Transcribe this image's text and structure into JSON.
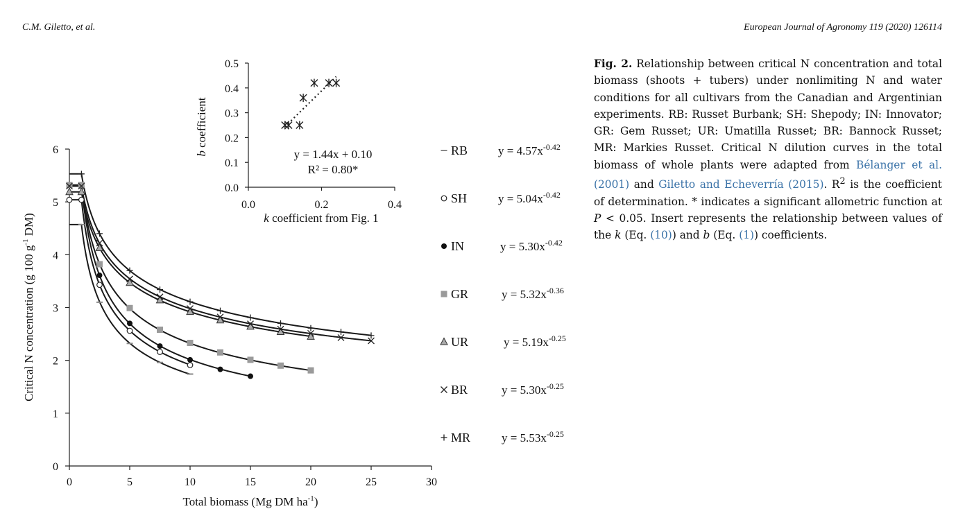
{
  "header": {
    "authors": "C.M. Giletto, et al.",
    "journal": "European Journal of Agronomy 119 (2020) 126114"
  },
  "caption": {
    "label": "Fig. 2.",
    "text1": " Relationship between critical N concentration and total biomass (shoots + tubers) under nonlimiting N and water conditions for all cultivars from the Canadian and Argentinian experiments. RB: Russet Burbank; SH: Shepody; IN: Innovator; GR: Gem Russet; UR: Umatilla Russet; BR: Bannock Russet; MR: Markies Russet. Critical N dilution curves in the total biomass of whole plants were adapted from ",
    "ref1": "Bélanger et al. (2001)",
    "text2": " and ",
    "ref2": "Giletto and Echeverría (2015)",
    "text3": ". R",
    "sup": "2",
    "text4": " is the coefficient of determination. * indicates a significant allometric function at ",
    "p_var": "P",
    "text5": " <  0.05. Insert represents the relationship between values of the ",
    "k_var": "k",
    "text6": " (Eq. ",
    "eq10": "(10)",
    "text7": ") and ",
    "b_var": "b",
    "text8": " (Eq. ",
    "eq1": "(1)",
    "text9": ") coefficients."
  },
  "chart_data": [
    {
      "type": "line",
      "title": "",
      "xlabel": "Total biomass (Mg DM ha",
      "xlabel_sup": "-1",
      "xlabel_end": ")",
      "ylabel": "Critical  N concentration  (g 100 g",
      "ylabel_sup": "-1",
      "ylabel_end": " DM)",
      "xlim": [
        0,
        30
      ],
      "ylim": [
        0,
        6
      ],
      "xticks": [
        "0",
        "5",
        "10",
        "15",
        "20",
        "25",
        "30"
      ],
      "yticks": [
        "0",
        "1",
        "2",
        "3",
        "4",
        "5",
        "6"
      ],
      "legend": "right",
      "series": [
        {
          "name": "RB",
          "marker": "dash",
          "a": 4.57,
          "b": 0.42,
          "xmax": 10,
          "plateau": 4.57,
          "equation": "y = 4.57x",
          "exponent": "-0.42",
          "x": [
            1,
            2.5,
            5,
            7.5,
            10
          ],
          "y": [
            4.57,
            3.1,
            2.32,
            1.96,
            1.74
          ]
        },
        {
          "name": "SH",
          "marker": "circle-open",
          "a": 5.04,
          "b": 0.42,
          "xmax": 10,
          "plateau": 5.04,
          "equation": "y = 5.04x",
          "exponent": "-0.42",
          "x": [
            0,
            1,
            2.5,
            5,
            7.5,
            10
          ],
          "y": [
            5.04,
            5.04,
            3.43,
            2.56,
            2.16,
            1.91
          ]
        },
        {
          "name": "IN",
          "marker": "circle-filled",
          "a": 5.3,
          "b": 0.42,
          "xmax": 15,
          "plateau": 5.3,
          "equation": "y = 5.30x",
          "exponent": "-0.42",
          "x": [
            1,
            2.5,
            5,
            7.5,
            10,
            12.5,
            15
          ],
          "y": [
            5.3,
            3.61,
            2.7,
            2.27,
            2.01,
            1.83,
            1.7
          ]
        },
        {
          "name": "GR",
          "marker": "square",
          "a": 5.32,
          "b": 0.36,
          "xmax": 20,
          "plateau": 5.32,
          "equation": "y = 5.32x",
          "exponent": "-0.36",
          "x": [
            0,
            1,
            2.5,
            5,
            7.5,
            10,
            12.5,
            15,
            17.5,
            20
          ],
          "y": [
            5.32,
            5.32,
            3.82,
            2.99,
            2.58,
            2.33,
            2.15,
            2.01,
            1.9,
            1.81
          ]
        },
        {
          "name": "UR",
          "marker": "triangle",
          "a": 5.19,
          "b": 0.25,
          "xmax": 20,
          "plateau": 5.19,
          "equation": "y = 5.19x",
          "exponent": "-0.25",
          "x": [
            0,
            1,
            2.5,
            5,
            7.5,
            10,
            12.5,
            15,
            17.5,
            20
          ],
          "y": [
            5.19,
            5.19,
            4.13,
            3.47,
            3.14,
            2.92,
            2.76,
            2.64,
            2.54,
            2.45
          ]
        },
        {
          "name": "BR",
          "marker": "x",
          "a": 5.3,
          "b": 0.25,
          "xmax": 25,
          "plateau": 5.3,
          "equation": "y = 5.30x",
          "exponent": "-0.25",
          "x": [
            0,
            1,
            2.5,
            5,
            7.5,
            10,
            12.5,
            15,
            17.5,
            20,
            22.5,
            25
          ],
          "y": [
            5.3,
            5.3,
            4.22,
            3.54,
            3.2,
            2.98,
            2.82,
            2.69,
            2.59,
            2.51,
            2.43,
            2.37
          ]
        },
        {
          "name": "MR",
          "marker": "plus",
          "a": 5.53,
          "b": 0.25,
          "xmax": 25,
          "plateau": 5.53,
          "equation": "y = 5.53x",
          "exponent": "-0.25",
          "x": [
            1,
            2.5,
            5,
            7.5,
            10,
            12.5,
            15,
            17.5,
            20,
            22.5,
            25
          ],
          "y": [
            5.53,
            4.4,
            3.7,
            3.34,
            3.11,
            2.94,
            2.81,
            2.7,
            2.61,
            2.54,
            2.47
          ]
        }
      ]
    },
    {
      "type": "scatter",
      "title": "",
      "xlabel_var": "k",
      "xlabel": " coefficient  from Fig.  1",
      "ylabel_var": "b",
      "ylabel": " coefficient",
      "xlim": [
        0,
        0.4
      ],
      "ylim": [
        0,
        0.5
      ],
      "xticks": [
        "0.0",
        "0.2",
        "0.4"
      ],
      "yticks": [
        "0.0",
        "0.1",
        "0.2",
        "0.3",
        "0.4",
        "0.5"
      ],
      "points": {
        "x": [
          0.1,
          0.11,
          0.14,
          0.15,
          0.18,
          0.22,
          0.24
        ],
        "y": [
          0.25,
          0.25,
          0.25,
          0.36,
          0.42,
          0.42,
          0.42
        ]
      },
      "trendline": {
        "slope": 1.44,
        "intercept": 0.1,
        "x": [
          0.1,
          0.24
        ]
      },
      "equation": "y = 1.44x + 0.10",
      "r2": "R² = 0.80*"
    }
  ]
}
